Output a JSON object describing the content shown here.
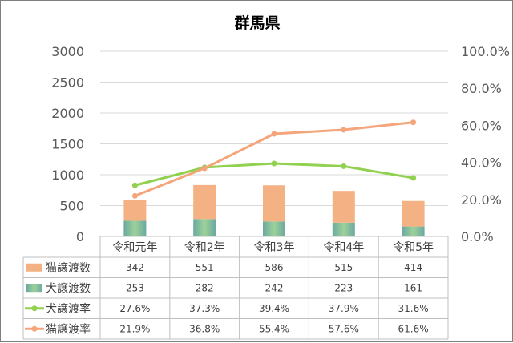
{
  "chart_data": {
    "type": "bar",
    "title": "群馬県",
    "categories": [
      "令和元年",
      "令和2年",
      "令和3年",
      "令和4年",
      "令和5年"
    ],
    "stacked_bars": [
      {
        "name": "犬譲渡数",
        "values": [
          253,
          282,
          242,
          223,
          161
        ],
        "color": "#7fbf7f"
      },
      {
        "name": "猫譲渡数",
        "values": [
          342,
          551,
          586,
          515,
          414
        ],
        "color": "#f4b183"
      }
    ],
    "lines": [
      {
        "name": "犬譲渡率",
        "values": [
          27.6,
          37.3,
          39.4,
          37.9,
          31.6
        ],
        "color": "#92d050"
      },
      {
        "name": "猫譲渡率",
        "values": [
          21.9,
          36.8,
          55.4,
          57.6,
          61.6
        ],
        "color": "#f4a57c"
      }
    ],
    "table_rows": [
      {
        "label": "猫譲渡数",
        "cells": [
          "342",
          "551",
          "586",
          "515",
          "414"
        ]
      },
      {
        "label": "犬譲渡数",
        "cells": [
          "253",
          "282",
          "242",
          "223",
          "161"
        ]
      },
      {
        "label": "犬譲渡率",
        "cells": [
          "27.6%",
          "37.3%",
          "39.4%",
          "37.9%",
          "31.6%"
        ]
      },
      {
        "label": "猫譲渡率",
        "cells": [
          "21.9%",
          "36.8%",
          "55.4%",
          "57.6%",
          "61.6%"
        ]
      }
    ],
    "yleft": {
      "ticks": [
        "0",
        "500",
        "1000",
        "1500",
        "2000",
        "2500",
        "3000"
      ],
      "ylim": [
        0,
        3000
      ]
    },
    "yright": {
      "ticks": [
        "0.0%",
        "20.0%",
        "40.0%",
        "60.0%",
        "80.0%",
        "100.0%"
      ],
      "ylim": [
        0,
        100
      ]
    },
    "grid": true,
    "legend": "data-table"
  }
}
